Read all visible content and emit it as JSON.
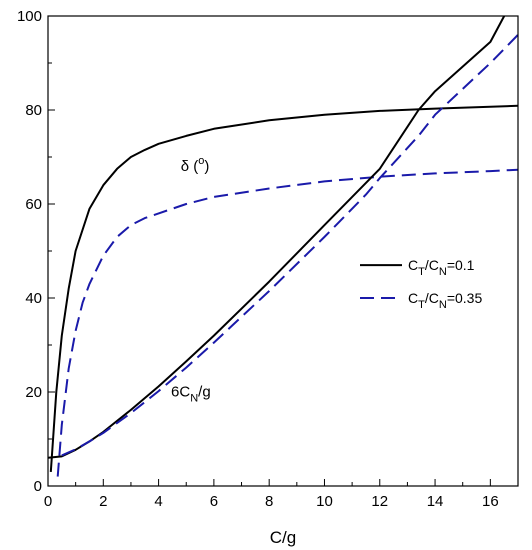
{
  "chart_data": {
    "type": "line",
    "xlabel": "C/g",
    "ylabel": "",
    "xlim": [
      0,
      17
    ],
    "ylim": [
      0,
      100
    ],
    "xticks": [
      0,
      2,
      4,
      6,
      8,
      10,
      12,
      14,
      16
    ],
    "yticks": [
      0,
      20,
      40,
      60,
      80,
      100
    ],
    "grid": false,
    "legend_position": "right",
    "annotations": [
      {
        "id": "delta",
        "parts": [
          {
            "t": "δ (",
            "s": ""
          },
          {
            "t": "o",
            "s": "sup"
          },
          {
            "t": ")",
            "s": ""
          }
        ],
        "at": [
          4.8,
          67
        ]
      },
      {
        "id": "cn",
        "parts": [
          {
            "t": "6C",
            "s": ""
          },
          {
            "t": "N",
            "s": "sub"
          },
          {
            "t": "/g",
            "s": ""
          }
        ],
        "at": [
          4.45,
          19
        ]
      }
    ],
    "legend": [
      {
        "series": "solid",
        "parts": [
          {
            "t": "C",
            "s": ""
          },
          {
            "t": "T",
            "s": "sub"
          },
          {
            "t": "/C",
            "s": ""
          },
          {
            "t": "N",
            "s": "sub"
          },
          {
            "t": "=0.1",
            "s": ""
          }
        ]
      },
      {
        "series": "dashed",
        "parts": [
          {
            "t": "C",
            "s": ""
          },
          {
            "t": "T",
            "s": "sub"
          },
          {
            "t": "/C",
            "s": ""
          },
          {
            "t": "N",
            "s": "sub"
          },
          {
            "t": "=0.35",
            "s": ""
          }
        ]
      }
    ],
    "series": [
      {
        "id": "delta-solid",
        "style": "solid",
        "color": "#000000",
        "x": [
          0.1,
          0.3,
          0.5,
          0.75,
          1.0,
          1.5,
          2.0,
          2.5,
          3.0,
          3.5,
          4.0,
          5.0,
          6.0,
          8.0,
          10.0,
          12.0,
          14.0,
          16.0,
          17.0
        ],
        "y": [
          3,
          20,
          32,
          42,
          50,
          59,
          64,
          67.5,
          70,
          71.5,
          72.8,
          74.5,
          76,
          77.8,
          79,
          79.8,
          80.3,
          80.7,
          80.9
        ]
      },
      {
        "id": "delta-dashed",
        "style": "dashed",
        "color": "#1a1aaa",
        "x": [
          0.35,
          0.5,
          0.75,
          1.0,
          1.25,
          1.5,
          2.0,
          2.5,
          3.0,
          3.5,
          4.0,
          5.0,
          6.0,
          8.0,
          10.0,
          12.0,
          14.0,
          16.0,
          17.0
        ],
        "y": [
          2,
          13,
          25,
          33,
          39,
          43,
          49,
          53,
          55.5,
          57,
          58,
          60,
          61.5,
          63.3,
          64.8,
          65.8,
          66.5,
          67,
          67.3
        ]
      },
      {
        "id": "cn-solid",
        "style": "solid",
        "color": "#000000",
        "x": [
          0,
          0.5,
          1.0,
          1.5,
          2.0,
          3.0,
          4.0,
          5.0,
          6.0,
          8.0,
          10.0,
          12.0,
          13.4,
          14.0,
          16.0,
          16.5
        ],
        "y": [
          6,
          6.3,
          7.7,
          9.5,
          11.5,
          16.2,
          21.2,
          26.5,
          32,
          43.5,
          55.5,
          67.5,
          80,
          84,
          94.5,
          100
        ]
      },
      {
        "id": "cn-dashed",
        "style": "dashed",
        "color": "#1a1aaa",
        "x": [
          0.5,
          1.0,
          1.5,
          2.0,
          3.0,
          4.0,
          5.0,
          6.0,
          8.0,
          10.0,
          11.5,
          12.0,
          13.4,
          14.0,
          16.0,
          17.0
        ],
        "y": [
          6.5,
          7.8,
          9.5,
          11.3,
          15.5,
          20.2,
          25.2,
          30.5,
          41.5,
          53,
          62,
          65.5,
          74.5,
          79,
          90,
          96
        ]
      }
    ]
  }
}
